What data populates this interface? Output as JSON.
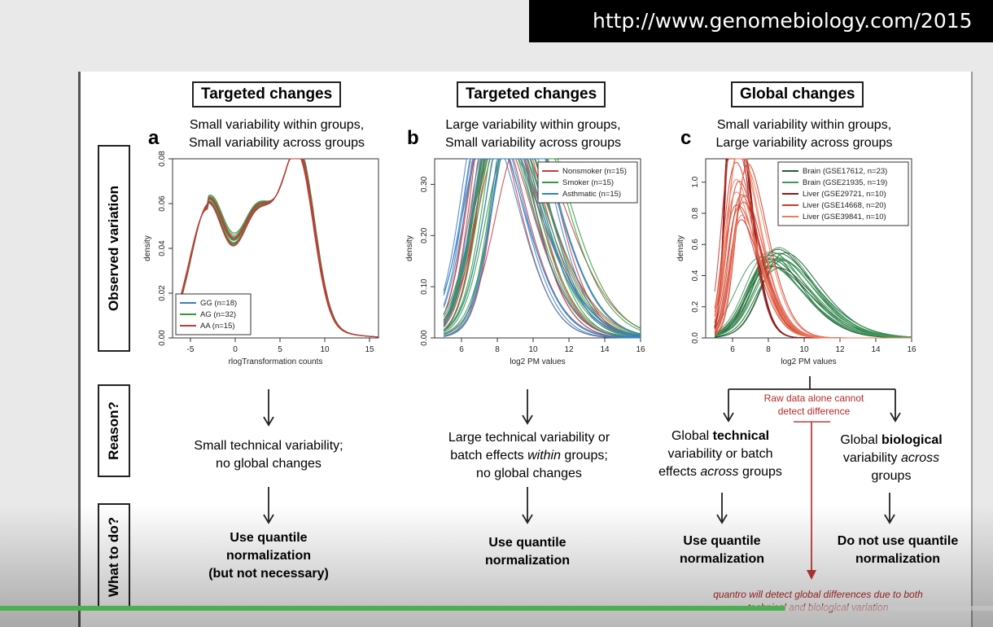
{
  "url_text": "http://www.genomebiology.com/2015",
  "video": {
    "progress": 0.79
  },
  "row_labels": [
    "Observed variation",
    "Reason?",
    "What to do?"
  ],
  "panels": [
    {
      "letter": "a",
      "header": "Targeted changes",
      "subtitle": [
        "Small variability within groups,",
        "Small variability across groups"
      ],
      "reason": [
        "Small technical variability;",
        "no global changes"
      ],
      "todo": [
        "Use quantile",
        "normalization",
        "(but not necessary)"
      ]
    },
    {
      "letter": "b",
      "header": "Targeted changes",
      "subtitle": [
        "Large variability within groups,",
        "Small variability across groups"
      ],
      "reason": [
        "Large technical variability or",
        "batch effects <i>within</i> groups;",
        "no global changes"
      ],
      "todo": [
        "Use quantile",
        "normalization"
      ]
    },
    {
      "letter": "c",
      "header": "Global changes",
      "subtitle": [
        "Small variability within groups,",
        "Large variability across groups"
      ],
      "reason_left": [
        "Global <b>technical</b>",
        "variability or batch",
        "effects <i>across</i> groups"
      ],
      "reason_right": [
        "Global <b>biological</b>",
        "variability <i>across</i>",
        "groups"
      ],
      "todo_left": [
        "Use quantile",
        "normalization"
      ],
      "todo_right": [
        "Do not use quantile",
        "normalization"
      ],
      "red_note": [
        "Raw data alone cannot",
        "detect difference"
      ],
      "footer_note": "quantro will detect global differences due to both",
      "footer_note2": "technical and biological variation"
    }
  ],
  "chart_data": [
    {
      "type": "line",
      "xlabel": "rlogTransformation counts",
      "ylabel": "density",
      "xlim": [
        -7,
        16
      ],
      "ylim": [
        0,
        0.08
      ],
      "xticks": [
        -5,
        0,
        5,
        10,
        15
      ],
      "yticks": [
        0.0,
        0.02,
        0.04,
        0.06,
        0.08
      ],
      "legend_position": "bottom-left",
      "series": [
        {
          "name": "GG (n=18)",
          "color": "#3b7fc4"
        },
        {
          "name": "AG (n=32)",
          "color": "#2e9a3c"
        },
        {
          "name": "AA (n=15)",
          "color": "#c43b3b"
        }
      ]
    },
    {
      "type": "line",
      "xlabel": "log2 PM values",
      "ylabel": "density",
      "xlim": [
        4.5,
        16
      ],
      "ylim": [
        0,
        0.35
      ],
      "xticks": [
        6,
        8,
        10,
        12,
        14,
        16
      ],
      "yticks": [
        0.0,
        0.1,
        0.2,
        0.3
      ],
      "legend_position": "top-right",
      "series": [
        {
          "name": "Nonsmoker (n=15)",
          "color": "#c43b3b"
        },
        {
          "name": "Smoker (n=15)",
          "color": "#2e9a3c"
        },
        {
          "name": "Asthmatic (n=15)",
          "color": "#3b7fc4"
        }
      ]
    },
    {
      "type": "line",
      "xlabel": "log2 PM values",
      "ylabel": "density",
      "xlim": [
        4.5,
        16
      ],
      "ylim": [
        0,
        1.15
      ],
      "xticks": [
        6,
        8,
        10,
        12,
        14,
        16
      ],
      "yticks": [
        0.0,
        0.2,
        0.4,
        0.6,
        0.8,
        1.0
      ],
      "legend_position": "top-right",
      "series": [
        {
          "name": "Brain (GSE17612, n=23)",
          "color": "#1f5c33"
        },
        {
          "name": "Brain (GSE21935, n=19)",
          "color": "#3f9a5a"
        },
        {
          "name": "Liver (GSE29721, n=10)",
          "color": "#8b1a1a"
        },
        {
          "name": "Liver (GSE14668, n=20)",
          "color": "#cc3a2a"
        },
        {
          "name": "Liver (GSE39841, n=10)",
          "color": "#ee7a5a"
        }
      ]
    }
  ]
}
